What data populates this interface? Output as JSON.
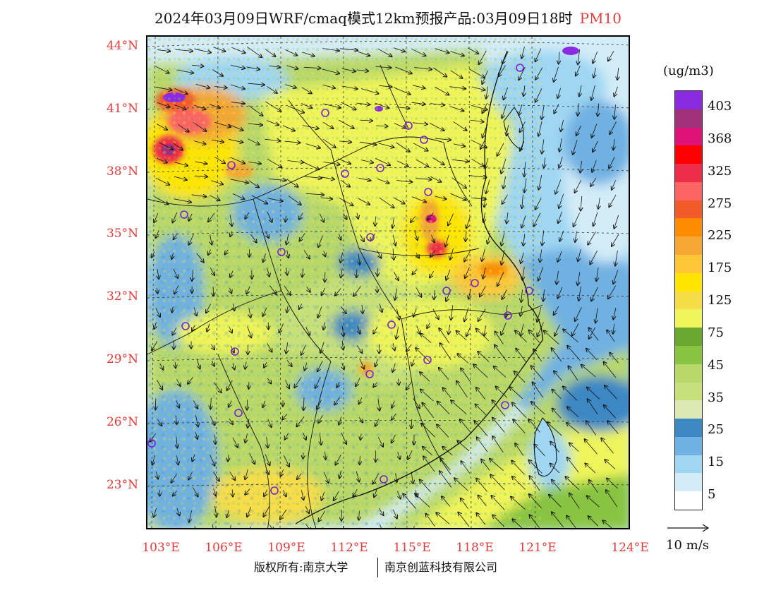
{
  "title": {
    "main": "2024年03月09日WRF/cmaq模式12km预报产品:03月09日18时",
    "pollutant": "PM10"
  },
  "lat_labels": [
    "44°N",
    "41°N",
    "38°N",
    "35°N",
    "32°N",
    "29°N",
    "26°N",
    "23°N"
  ],
  "lon_labels": [
    "103°E",
    "106°E",
    "109°E",
    "112°E",
    "115°E",
    "118°E",
    "121°E",
    "124°E"
  ],
  "legend": {
    "unit": "(ug/m3)",
    "labels": [
      "403",
      "368",
      "325",
      "275",
      "225",
      "175",
      "125",
      "75",
      "45",
      "35",
      "25",
      "15",
      "5"
    ],
    "colors": [
      "#8a2be2",
      "#a0307a",
      "#e0127a",
      "#ff0000",
      "#ef2b4a",
      "#ff6464",
      "#f25a2a",
      "#ff8c00",
      "#f4a731",
      "#ffc637",
      "#ffe500",
      "#f6dd48",
      "#eef55a",
      "#6aa832",
      "#88c442",
      "#b8d86a",
      "#c6e07c",
      "#dde8b4",
      "#3d88c4",
      "#6fb1e2",
      "#9fd6f2",
      "#d3ecf8",
      "#ffffff"
    ]
  },
  "wind_reference": "10 m/s",
  "copyright": {
    "left": "版权所有:南京大学",
    "right": "南京创蓝科技有限公司"
  },
  "city_markers": "purple-circle-icon",
  "map_colors": {
    "ocean_blue": "#6fb1e2",
    "light_blue": "#d3ecf8",
    "green": "#b8d86a",
    "yellow": "#eef55a",
    "orange": "#f4a731",
    "red": "#e0127a",
    "purple": "#8a2be2"
  }
}
